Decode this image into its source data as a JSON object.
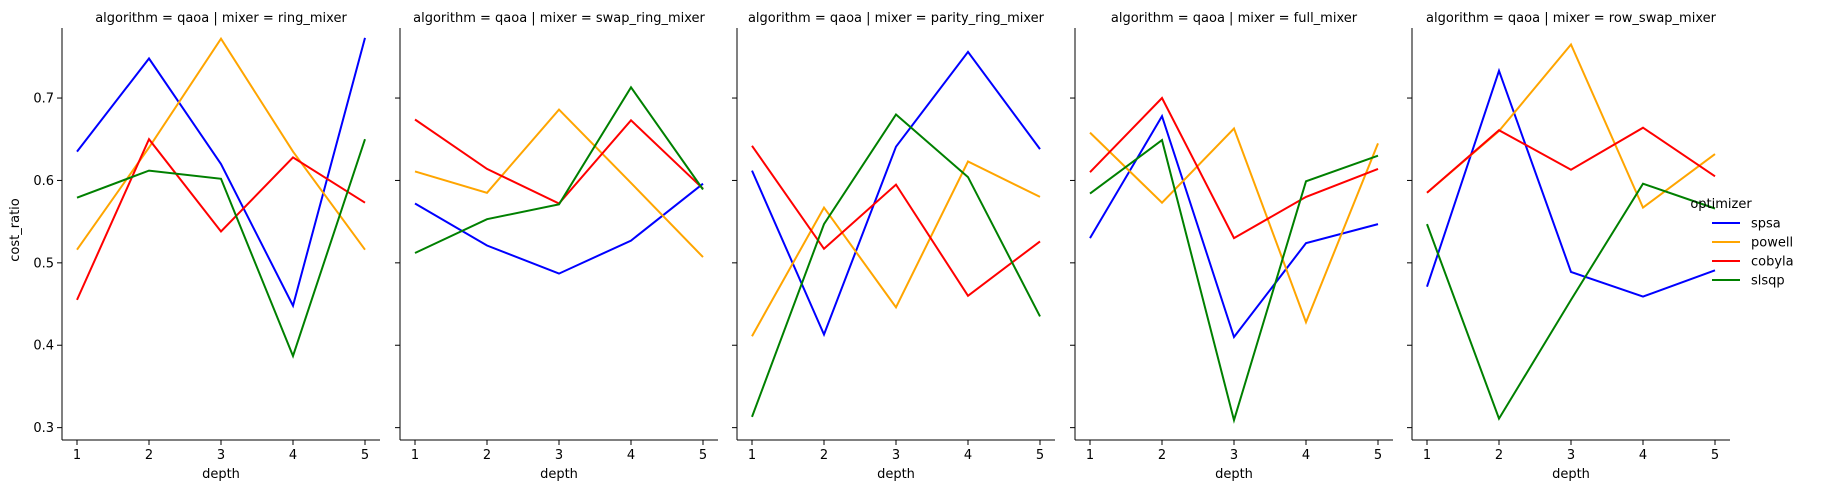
{
  "chart_data": {
    "type": "line",
    "ylabel": "cost_ratio",
    "xlabel": "depth",
    "x": [
      1,
      2,
      3,
      4,
      5
    ],
    "ylim": [
      0.285,
      0.785
    ],
    "yticks": [
      "0.3",
      "0.4",
      "0.5",
      "0.6",
      "0.7"
    ],
    "ytick_values": [
      0.3,
      0.4,
      0.5,
      0.6,
      0.7
    ],
    "xticks": [
      "1",
      "2",
      "3",
      "4",
      "5"
    ],
    "legend": {
      "title": "optimizer",
      "placement": "right",
      "entries": [
        "spsa",
        "powell",
        "cobyla",
        "slsqp"
      ]
    },
    "colors": {
      "spsa": "#0000ff",
      "powell": "#ffa500",
      "cobyla": "#ff0000",
      "slsqp": "#008000"
    },
    "panels": [
      {
        "title": "algorithm = qaoa | mixer = ring_mixer",
        "series": [
          {
            "name": "spsa",
            "values": [
              0.635,
              0.748,
              0.62,
              0.448,
              0.773
            ]
          },
          {
            "name": "powell",
            "values": [
              0.516,
              0.64,
              0.772,
              0.635,
              0.516
            ]
          },
          {
            "name": "cobyla",
            "values": [
              0.455,
              0.65,
              0.538,
              0.628,
              0.573
            ]
          },
          {
            "name": "slsqp",
            "values": [
              0.579,
              0.612,
              0.602,
              0.387,
              0.65
            ]
          }
        ]
      },
      {
        "title": "algorithm = qaoa | mixer = swap_ring_mixer",
        "series": [
          {
            "name": "spsa",
            "values": [
              0.572,
              0.521,
              0.487,
              0.527,
              0.596
            ]
          },
          {
            "name": "powell",
            "values": [
              0.611,
              0.585,
              0.686,
              0.597,
              0.507
            ]
          },
          {
            "name": "cobyla",
            "values": [
              0.674,
              0.614,
              0.572,
              0.673,
              0.59
            ]
          },
          {
            "name": "slsqp",
            "values": [
              0.512,
              0.553,
              0.571,
              0.713,
              0.589
            ]
          }
        ]
      },
      {
        "title": "algorithm = qaoa | mixer = parity_ring_mixer",
        "series": [
          {
            "name": "spsa",
            "values": [
              0.612,
              0.413,
              0.641,
              0.756,
              0.638
            ]
          },
          {
            "name": "powell",
            "values": [
              0.411,
              0.567,
              0.446,
              0.623,
              0.58
            ]
          },
          {
            "name": "cobyla",
            "values": [
              0.642,
              0.517,
              0.595,
              0.46,
              0.526
            ]
          },
          {
            "name": "slsqp",
            "values": [
              0.313,
              0.547,
              0.68,
              0.604,
              0.435
            ]
          }
        ]
      },
      {
        "title": "algorithm = qaoa | mixer = full_mixer",
        "series": [
          {
            "name": "spsa",
            "values": [
              0.53,
              0.678,
              0.41,
              0.524,
              0.547
            ]
          },
          {
            "name": "powell",
            "values": [
              0.658,
              0.573,
              0.663,
              0.428,
              0.645
            ]
          },
          {
            "name": "cobyla",
            "values": [
              0.61,
              0.7,
              0.53,
              0.58,
              0.614
            ]
          },
          {
            "name": "slsqp",
            "values": [
              0.584,
              0.649,
              0.309,
              0.599,
              0.63
            ]
          }
        ]
      },
      {
        "title": "algorithm = qaoa | mixer = row_swap_mixer",
        "series": [
          {
            "name": "spsa",
            "values": [
              0.471,
              0.733,
              0.489,
              0.459,
              0.491
            ]
          },
          {
            "name": "powell",
            "values": [
              0.585,
              0.66,
              0.765,
              0.567,
              0.632
            ]
          },
          {
            "name": "cobyla",
            "values": [
              0.585,
              0.661,
              0.613,
              0.664,
              0.605
            ]
          },
          {
            "name": "slsqp",
            "values": [
              0.547,
              0.311,
              0.455,
              0.596,
              0.566
            ]
          }
        ]
      }
    ]
  }
}
